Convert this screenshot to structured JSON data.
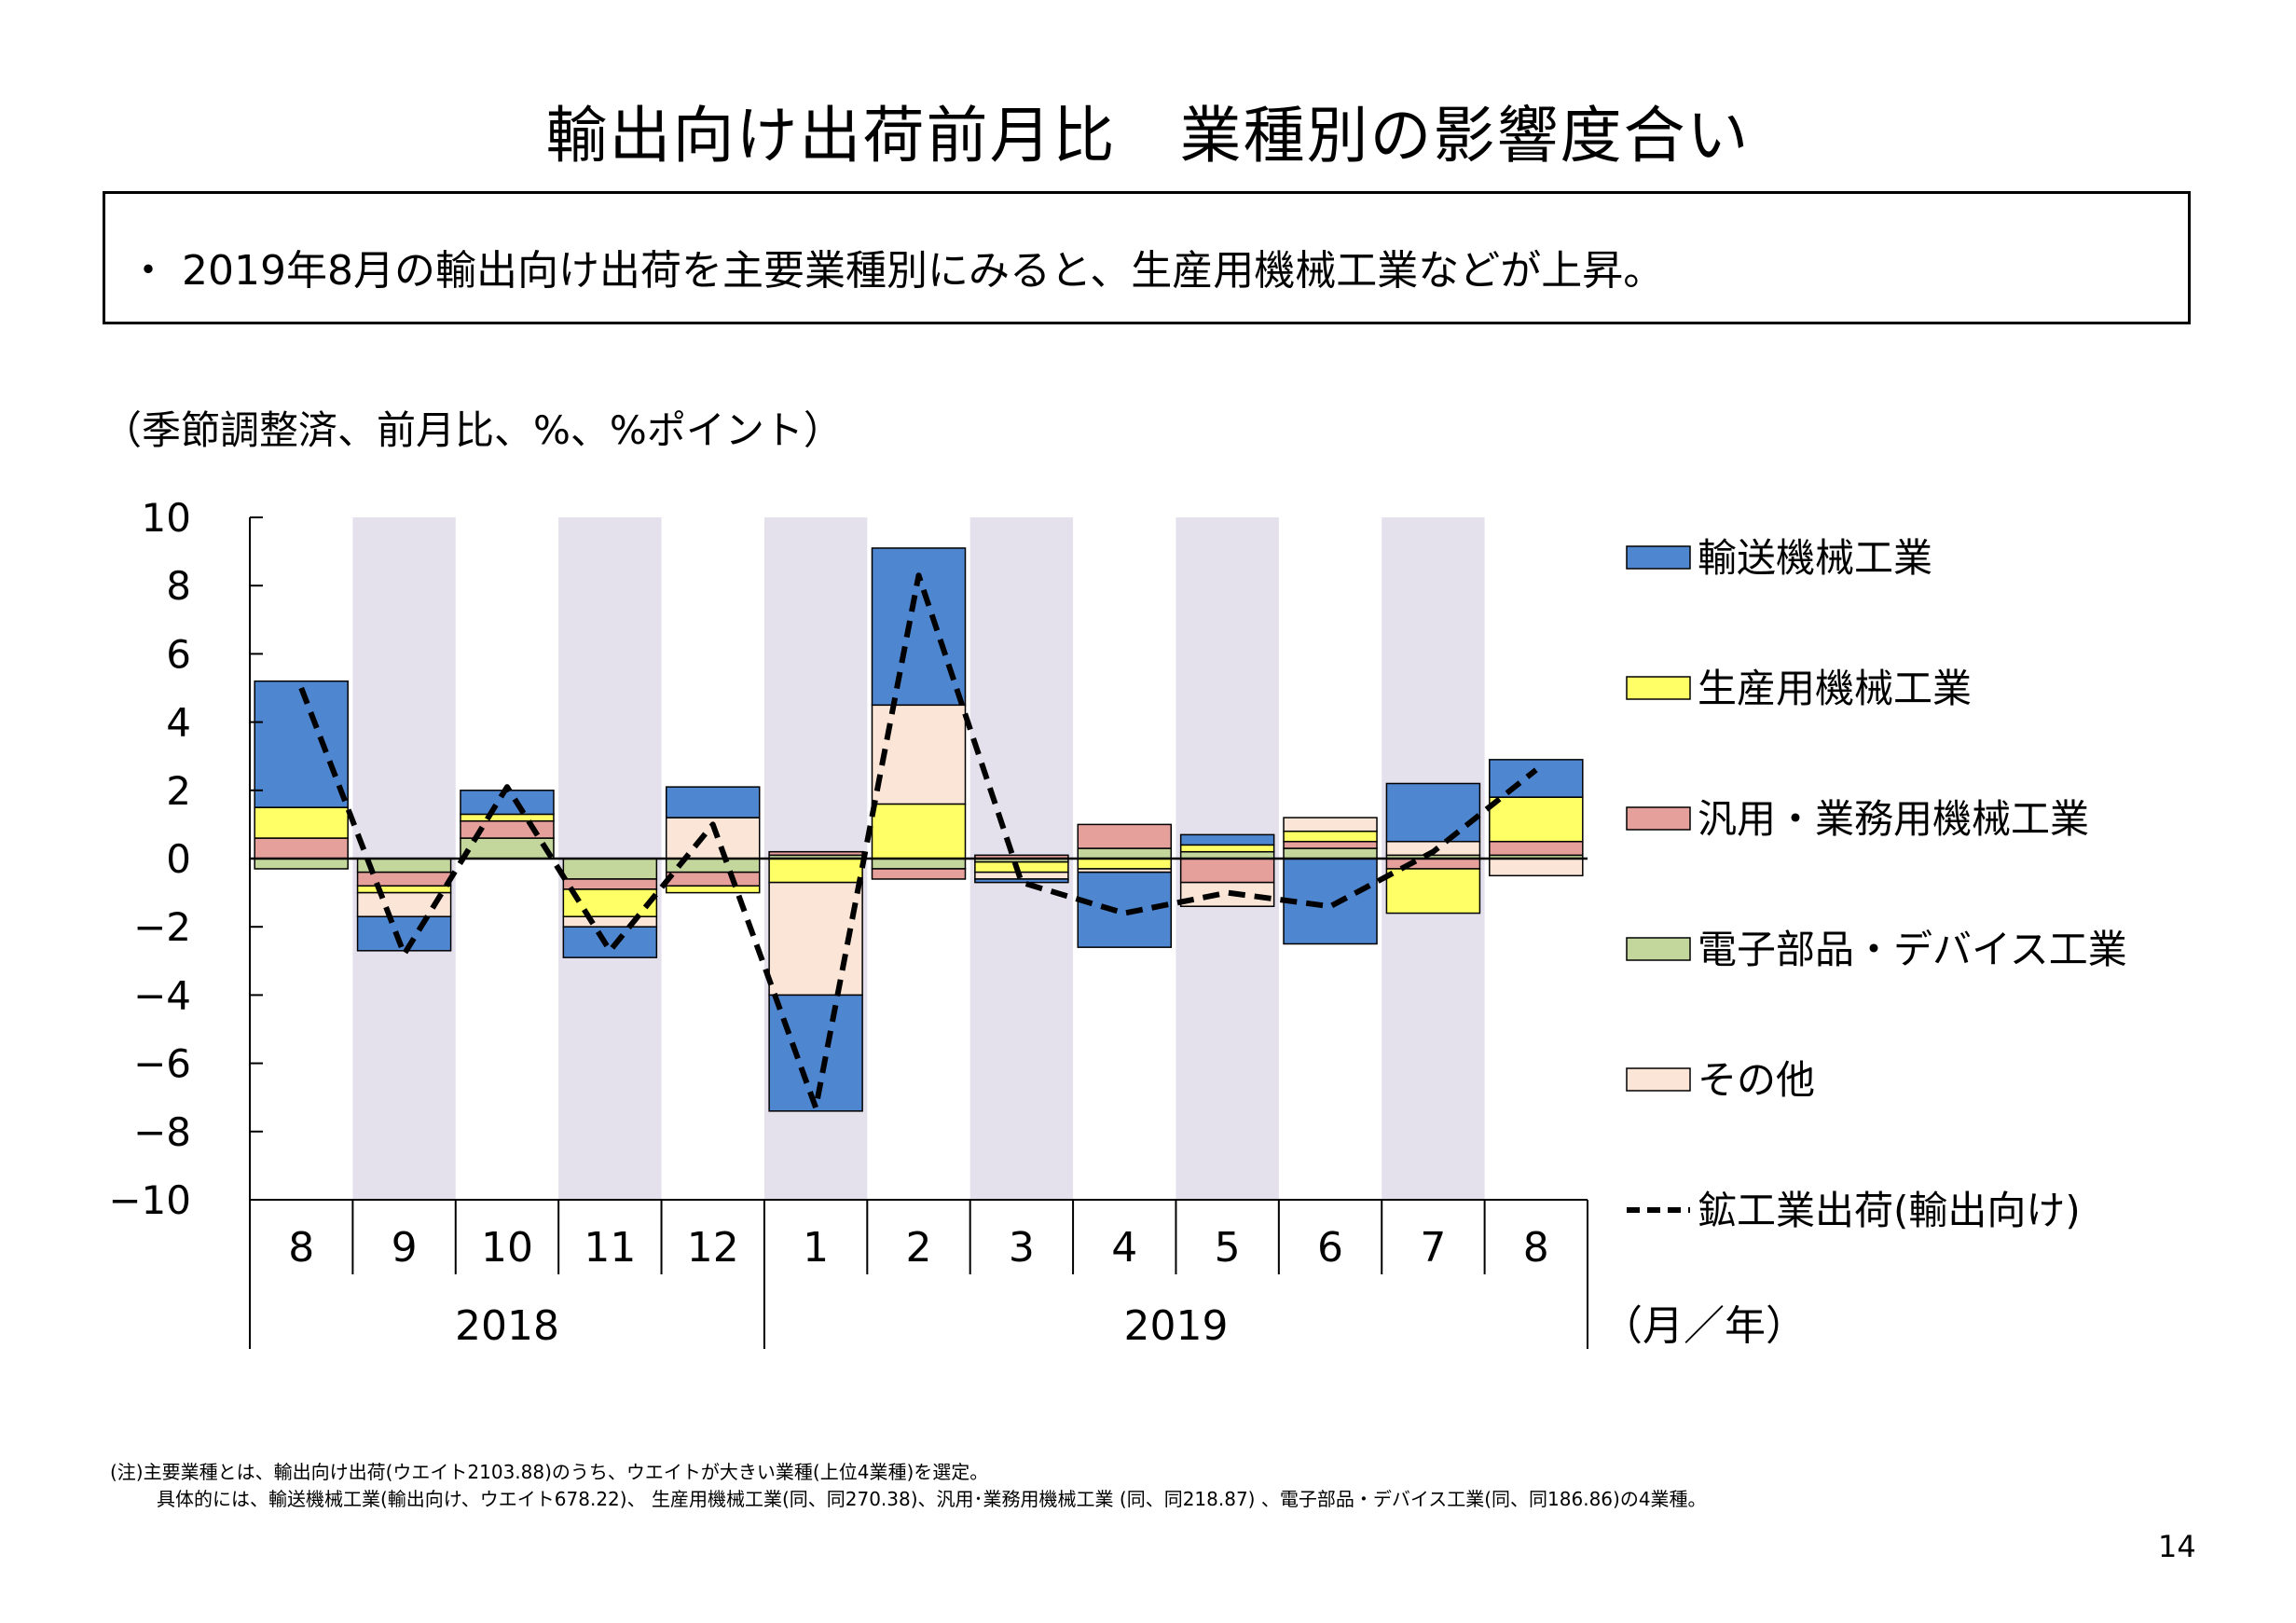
{
  "header": {
    "title": "輸出向け出荷前月比　業種別の影響度合い"
  },
  "summary": {
    "text": "・ 2019年8月の輸出向け出荷を主要業種別にみると、生産用機械工業などが上昇。"
  },
  "unit_note": "（季節調整済、前月比、%、%ポイント）",
  "footnotes": {
    "line1": "(注)主要業種とは、輸出向け出荷(ウエイト2103.88)のうち、ウエイトが大きい業種(上位4業種)を選定。",
    "line2": "具体的には、輸送機械工業(輸出向け、ウエイト678.22)、 生産用機械工業(同、同270.38)、汎用･業務用機械工業 (同、同218.87) 、電子部品・デバイス工業(同、同186.86)の4業種。"
  },
  "page_number": "14",
  "chart_data": {
    "type": "bar",
    "stacked": true,
    "categories": [
      "8",
      "9",
      "10",
      "11",
      "12",
      "1",
      "2",
      "3",
      "4",
      "5",
      "6",
      "7",
      "8"
    ],
    "year_groups": [
      {
        "label": "2018",
        "start": 0,
        "end": 4
      },
      {
        "label": "2019",
        "start": 5,
        "end": 12
      }
    ],
    "x_unit_label": "（月／年）",
    "ylim": [
      -10,
      10
    ],
    "yticks": [
      "10",
      "8",
      "6",
      "4",
      "2",
      "0",
      "−2",
      "−4",
      "−6",
      "−8",
      "−10"
    ],
    "shaded_categories": [
      1,
      3,
      5,
      7,
      9,
      11
    ],
    "shade_color": "#e4e0ec",
    "series": [
      {
        "name": "電子部品・デバイス工業",
        "color": "#c3d69b",
        "values": [
          -0.3,
          -0.4,
          0.6,
          -0.6,
          -0.4,
          0.1,
          -0.3,
          -0.1,
          0.3,
          0.2,
          0.3,
          0.1,
          0.1
        ]
      },
      {
        "name": "汎用・業務用機械工業",
        "color": "#e6a09c",
        "values": [
          0.6,
          -0.4,
          0.5,
          -0.3,
          -0.4,
          0.1,
          -0.3,
          0.1,
          0.7,
          -0.7,
          0.2,
          -0.3,
          0.4
        ]
      },
      {
        "name": "生産用機械工業",
        "color": "#ffff66",
        "values": [
          0.9,
          -0.2,
          0.2,
          -0.8,
          -0.2,
          -0.7,
          1.6,
          -0.3,
          -0.3,
          0.2,
          0.3,
          -1.3,
          1.3
        ]
      },
      {
        "name": "その他",
        "color": "#fbe5d6",
        "values": [
          0,
          -0.7,
          0.0,
          -0.3,
          1.2,
          -3.3,
          2.9,
          -0.2,
          -0.1,
          -0.7,
          0.4,
          0.4,
          -0.5
        ]
      },
      {
        "name": "輸送機械工業",
        "color": "#4f86d0",
        "values": [
          3.7,
          -1.0,
          0.7,
          -0.9,
          0.9,
          -3.4,
          4.6,
          -0.1,
          -2.2,
          0.3,
          -2.5,
          1.7,
          1.1
        ]
      }
    ],
    "line": {
      "name": "鉱工業出荷(輸出向け)",
      "color": "#000000",
      "style": "dashed",
      "values": [
        5.0,
        -2.8,
        2.1,
        -2.7,
        1.0,
        -7.3,
        8.3,
        -0.7,
        -1.6,
        -1.0,
        -1.4,
        0.2,
        2.6
      ]
    },
    "legend_order": [
      "輸送機械工業",
      "生産用機械工業",
      "汎用・業務用機械工業",
      "電子部品・デバイス工業",
      "その他",
      "鉱工業出荷(輸出向け)"
    ],
    "legend_position": "right",
    "grid": false
  }
}
